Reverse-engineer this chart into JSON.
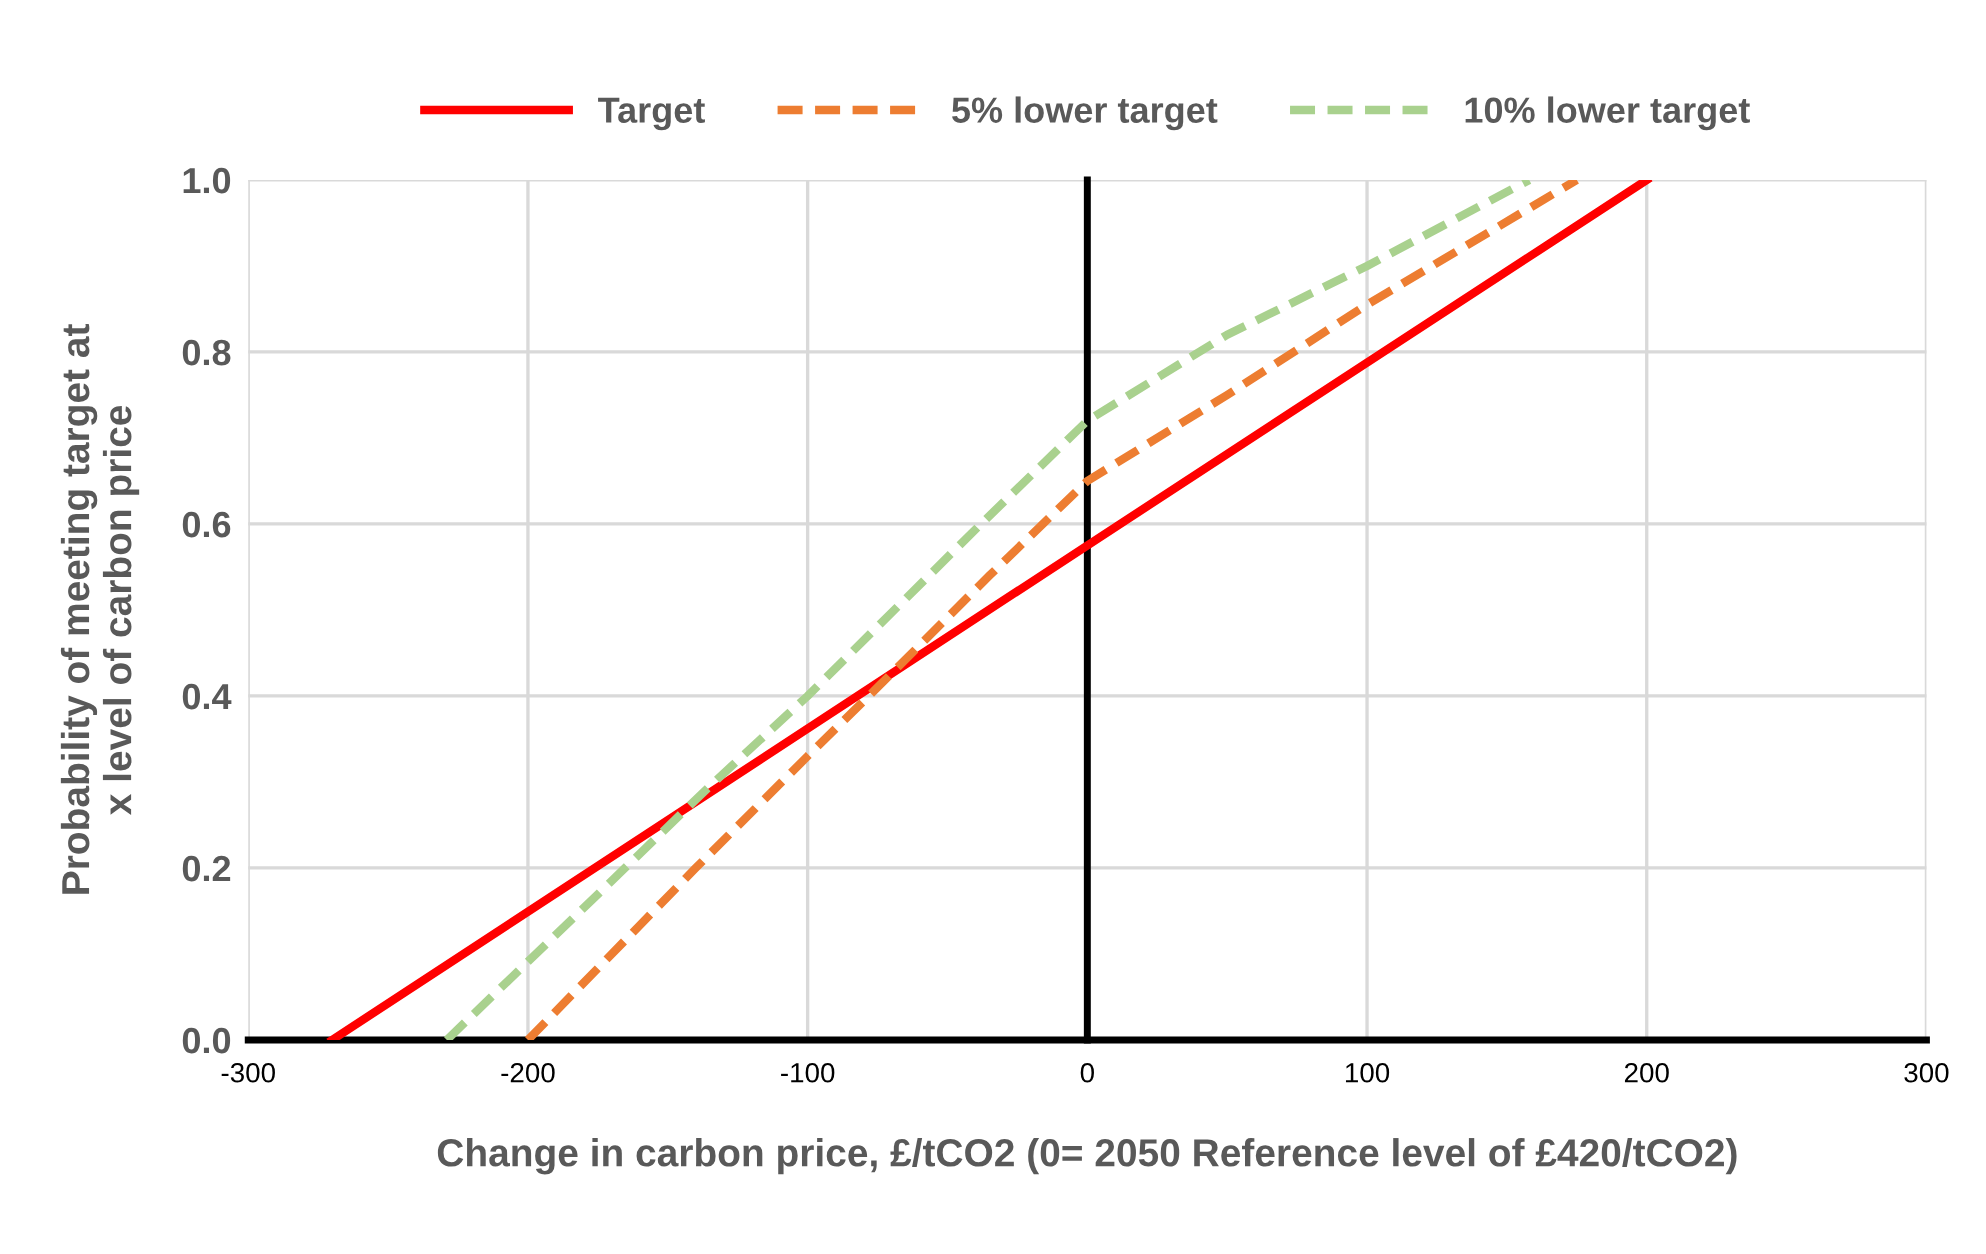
{
  "chart_data": {
    "type": "line",
    "xlabel": "Change in carbon price, £/tCO2 (0= 2050 Reference level of £420/tCO2)",
    "ylabel": "Probability of meeting target at\nx level of carbon price",
    "series": [
      {
        "name": "Target",
        "color": "#ff0000",
        "line_style": "solid",
        "x": [
          -270,
          0,
          200
        ],
        "values": [
          0.0,
          0.575,
          1.0
        ]
      },
      {
        "name": "5% lower target",
        "color": "#ed7d31",
        "line_style": "dashed",
        "x": [
          -200,
          -140,
          -100,
          -75,
          -35,
          0,
          50,
          100,
          175
        ],
        "values": [
          0.0,
          0.2,
          0.33,
          0.41,
          0.54,
          0.65,
          0.75,
          0.855,
          1.0
        ]
      },
      {
        "name": "10% lower target",
        "color": "#a9d18e",
        "line_style": "dashed",
        "x": [
          -229,
          -135,
          -100,
          -38,
          0,
          50,
          100,
          158
        ],
        "values": [
          0.0,
          0.295,
          0.4,
          0.6,
          0.72,
          0.82,
          0.9,
          1.0
        ]
      }
    ],
    "xlim": [
      -300,
      300
    ],
    "xticks": [
      -300,
      -200,
      -100,
      0,
      100,
      200,
      300
    ],
    "ylim": [
      0,
      1.0
    ],
    "yticks": [
      {
        "value": 0,
        "label": "0.0"
      },
      0.2,
      0.4,
      0.6,
      0.8,
      {
        "value": 1.0,
        "label": "1.0"
      }
    ],
    "grid": true,
    "legend": "top",
    "marker": "none"
  }
}
